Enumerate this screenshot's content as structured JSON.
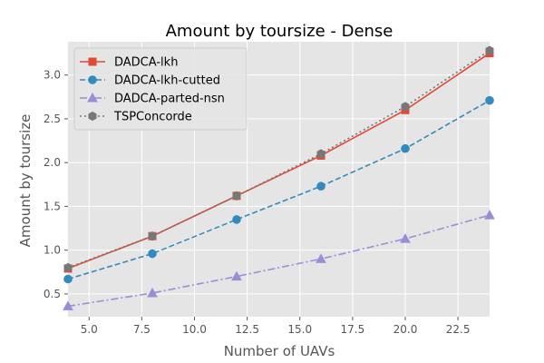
{
  "chart_data": {
    "type": "line",
    "title": "Amount by toursize - Dense",
    "xlabel": "Number of UAVs",
    "ylabel": "Amount by toursize",
    "xlim": [
      4,
      24
    ],
    "ylim": [
      0.24,
      3.38
    ],
    "xticks": [
      5.0,
      7.5,
      10.0,
      12.5,
      15.0,
      17.5,
      20.0,
      22.5
    ],
    "xtick_labels": [
      "5.0",
      "7.5",
      "10.0",
      "12.5",
      "15.0",
      "17.5",
      "20.0",
      "22.5"
    ],
    "yticks": [
      0.5,
      1.0,
      1.5,
      2.0,
      2.5,
      3.0
    ],
    "ytick_labels": [
      "0.5",
      "1.0",
      "1.5",
      "2.0",
      "2.5",
      "3.0"
    ],
    "grid": true,
    "legend_position": "top-left",
    "x": [
      4,
      8,
      12,
      16,
      20,
      24
    ],
    "series": [
      {
        "name": "DADCA-lkh",
        "values": [
          0.79,
          1.16,
          1.62,
          2.08,
          2.6,
          3.25
        ],
        "color": "#e24a33",
        "dash": "solid",
        "marker": "square"
      },
      {
        "name": "DADCA-lkh-cutted",
        "values": [
          0.67,
          0.96,
          1.35,
          1.73,
          2.16,
          2.71
        ],
        "color": "#348abd",
        "dash": "dashed",
        "marker": "circle"
      },
      {
        "name": "DADCA-parted-nsn",
        "values": [
          0.36,
          0.51,
          0.7,
          0.9,
          1.13,
          1.4
        ],
        "color": "#988ed5",
        "dash": "dashdot",
        "marker": "triangle"
      },
      {
        "name": "TSPConcorde",
        "values": [
          0.8,
          1.16,
          1.62,
          2.1,
          2.64,
          3.28
        ],
        "color": "#777777",
        "dash": "dotted",
        "marker": "hexagon"
      }
    ]
  }
}
